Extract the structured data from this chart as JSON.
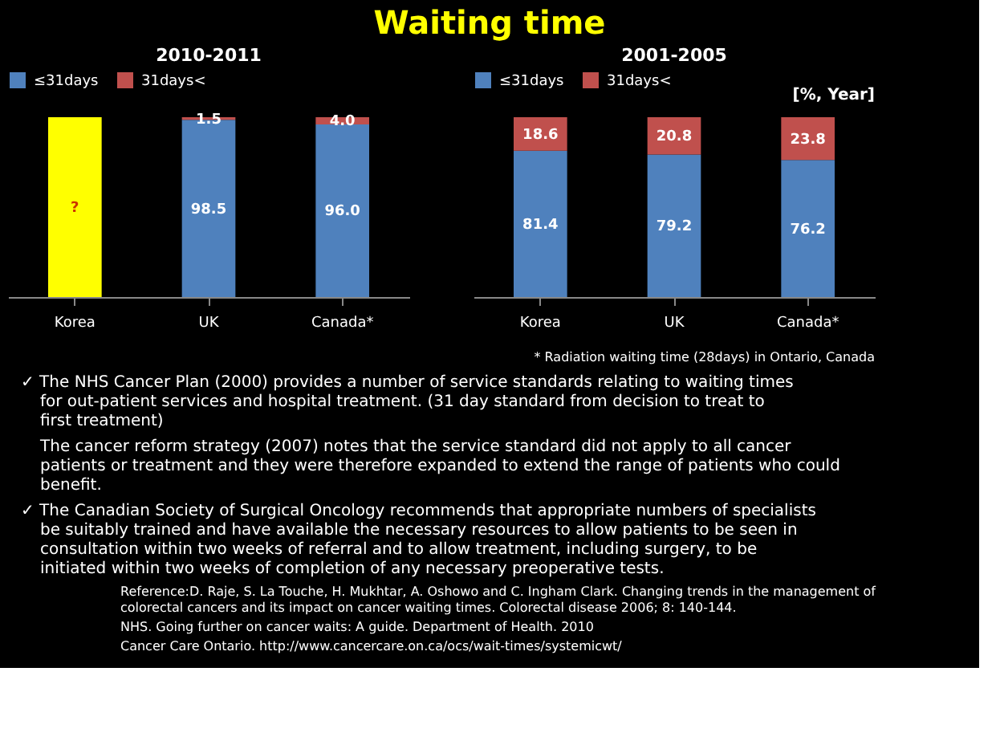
{
  "chart_data": [
    {
      "type": "bar",
      "title": "2010-2011",
      "categories": [
        "Korea",
        "UK",
        "Canada*"
      ],
      "stacked": true,
      "ylim": [
        0,
        100
      ],
      "legend": "top",
      "series": [
        {
          "name": "≤31days",
          "color": "#4f81bd",
          "values": [
            null,
            98.5,
            96.0
          ],
          "value_labels": [
            null,
            "98.5",
            "96.0"
          ]
        },
        {
          "name": "31days<",
          "color": "#c0504d",
          "values": [
            null,
            1.5,
            4.0
          ],
          "value_labels": [
            null,
            "1.5",
            "4.0"
          ]
        },
        {
          "color": "#ffff00",
          "values": [
            100,
            null,
            null
          ],
          "value_labels": [
            "?",
            null,
            null
          ]
        }
      ]
    },
    {
      "type": "bar",
      "title": "2001-2005",
      "categories": [
        "Korea",
        "UK",
        "Canada*"
      ],
      "stacked": true,
      "ylim": [
        0,
        100
      ],
      "legend": "top",
      "annotations": [
        "[%, Year]",
        "* Radiation waiting time (28days) in Ontario, Canada"
      ],
      "series": [
        {
          "name": "≤31days",
          "color": "#4f81bd",
          "values": [
            81.4,
            79.2,
            76.2
          ],
          "value_labels": [
            "81.4",
            "79.2",
            "76.2"
          ]
        },
        {
          "name": "31days<",
          "color": "#c0504d",
          "values": [
            18.6,
            20.8,
            23.8
          ],
          "value_labels": [
            "18.6",
            "20.8",
            "23.8"
          ]
        }
      ]
    },
    {
      "type": "other",
      "title": "Waiting time",
      "annotations": [
        "✓ The NHS Cancer Plan (2000) provides a number of service standards relating to waiting times for out-patient services and hospital treatment. (31 day standard from decision to treat to first treatment)",
        "The cancer reform strategy (2007) notes that the service standard did not apply to all cancer patients or treatment and they were therefore expanded to extend the range of patients who could benefit.",
        "✓ The Canadian Society of Surgical Oncology recommends that appropriate numbers of specialists be suitably trained and have available the necessary resources to allow patients to be seen in consultation within two weeks of referral and to allow treatment, including surgery, to be initiated within two weeks of completion of any necessary preoperative tests.",
        "Reference:D. Raje, S. La Touche, H. Mukhtar, A. Oshowo and C. Ingham Clark. Changing trends in the management of colorectal cancers and its impact on cancer waiting times. Colorectal disease 2006; 8: 140-144.",
        "NHS. Going further on cancer waits: A guide. Department of Health. 2010",
        "Cancer Care Ontario. http://www.cancercare.on.ca/ocs/wait-times/systemicwt/"
      ]
    }
  ]
}
